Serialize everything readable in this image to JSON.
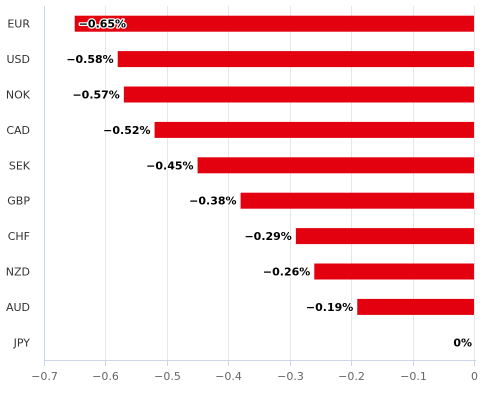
{
  "chart_data": {
    "type": "bar",
    "orientation": "horizontal",
    "title": "",
    "xlabel": "",
    "ylabel": "",
    "categories": [
      "EUR",
      "USD",
      "NOK",
      "CAD",
      "SEK",
      "GBP",
      "CHF",
      "NZD",
      "AUD",
      "JPY"
    ],
    "values": [
      -0.65,
      -0.58,
      -0.57,
      -0.52,
      -0.45,
      -0.38,
      -0.29,
      -0.26,
      -0.19,
      0
    ],
    "data_labels": [
      "−0.65%",
      "−0.58%",
      "−0.57%",
      "−0.52%",
      "−0.45%",
      "−0.38%",
      "−0.29%",
      "−0.26%",
      "−0.19%",
      "0%"
    ],
    "xlim": [
      -0.7,
      0
    ],
    "x_ticks": [
      -0.7,
      -0.6,
      -0.5,
      -0.4,
      -0.3,
      -0.2,
      -0.1,
      0
    ],
    "x_tick_labels": [
      "−0.7",
      "−0.6",
      "−0.5",
      "−0.4",
      "−0.3",
      "−0.2",
      "−0.1",
      "0"
    ],
    "grid": true,
    "legend": "none",
    "bar_color": "#e3000f",
    "grid_color": "#e6e6e6",
    "axis_color": "#ccd6eb"
  }
}
